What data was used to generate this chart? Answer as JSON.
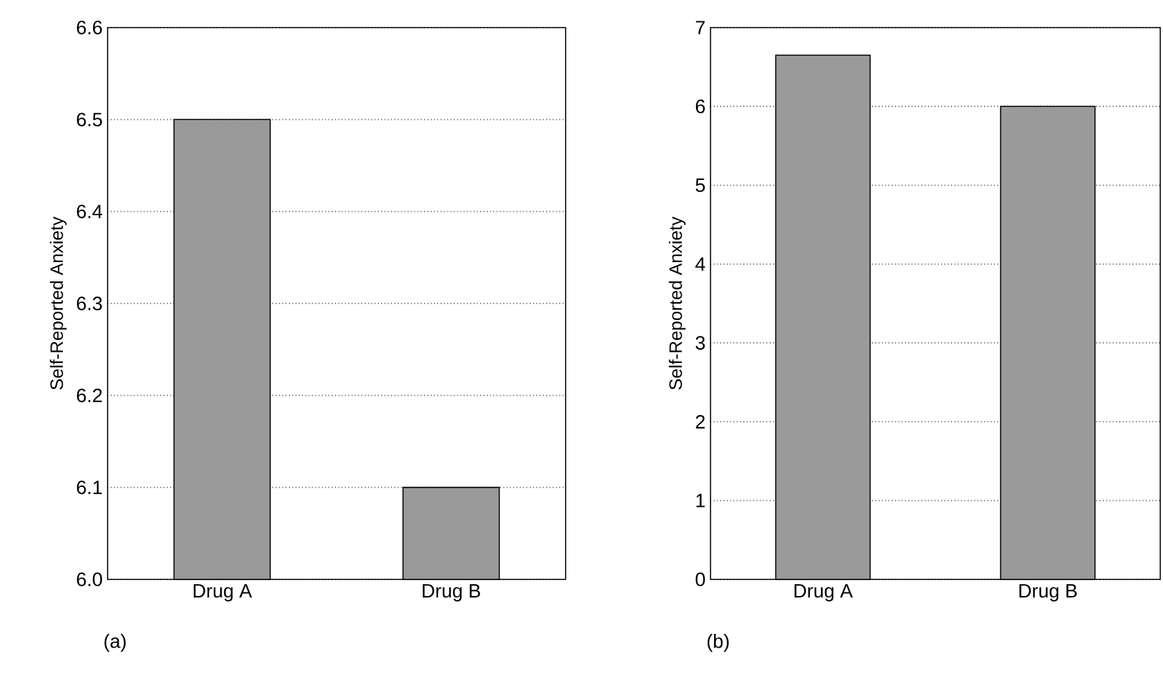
{
  "chart_data": [
    {
      "type": "bar",
      "ylabel": "Self-Reported Anxiety",
      "categories": [
        "Drug A",
        "Drug B"
      ],
      "values": [
        6.5,
        6.1
      ],
      "color": "#9a9a9a",
      "ylim": [
        6.0,
        6.6
      ],
      "yticks": [
        {
          "value": 6.0,
          "label": "6.0"
        },
        6.1,
        6.2,
        6.3,
        6.4,
        6.5,
        6.6
      ],
      "grid": "y",
      "annotations": [
        "(a)"
      ]
    },
    {
      "type": "bar",
      "ylabel": "Self-Reported Anxiety",
      "categories": [
        "Drug A",
        "Drug B"
      ],
      "values": [
        6.65,
        6.0
      ],
      "color": "#9a9a9a",
      "ylim": [
        0,
        7
      ],
      "yticks": [
        0,
        1,
        2,
        3,
        4,
        5,
        6,
        7
      ],
      "grid": "y",
      "annotations": [
        "(b)"
      ]
    }
  ]
}
